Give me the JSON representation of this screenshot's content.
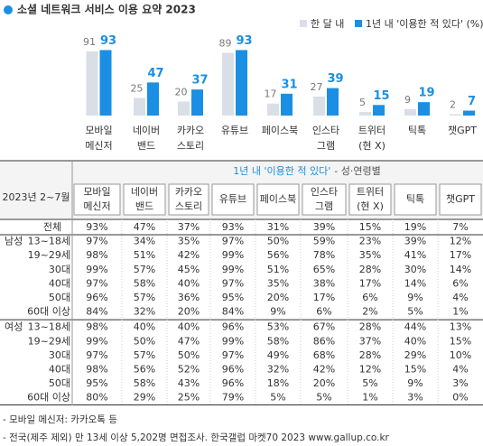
{
  "chart_data": {
    "type": "bar",
    "title": "소셜 네트워크 서비스 이용 요약 2023",
    "categories": [
      [
        "모바일",
        "메신저"
      ],
      [
        "네이버",
        "밴드"
      ],
      [
        "카카오",
        "스토리"
      ],
      [
        "유튜브"
      ],
      [
        "페이스북"
      ],
      [
        "인스타",
        "그램"
      ],
      [
        "트위터",
        "(현 X)"
      ],
      [
        "틱톡"
      ],
      [
        "챗GPT"
      ]
    ],
    "series": [
      {
        "name": "한 달 내",
        "color": "#d9dee7",
        "values": [
          91,
          25,
          20,
          89,
          17,
          27,
          5,
          9,
          2
        ]
      },
      {
        "name": "1년 내 '이용한 적 있다' (%)",
        "color": "#1a8fe3",
        "values": [
          93,
          47,
          37,
          93,
          31,
          39,
          15,
          19,
          7
        ]
      }
    ]
  },
  "table": {
    "title": "1년 내 '이용한 적 있다'",
    "subtitle": "- 성·연령별",
    "period": "2023년 2~7월",
    "total": {
      "label": "전체",
      "values": [
        "93%",
        "47%",
        "37%",
        "93%",
        "31%",
        "39%",
        "15%",
        "19%",
        "7%"
      ]
    },
    "groups": [
      {
        "name": "남성",
        "rows": [
          {
            "label": "13~18세",
            "values": [
              "97%",
              "34%",
              "35%",
              "97%",
              "50%",
              "59%",
              "23%",
              "39%",
              "12%"
            ]
          },
          {
            "label": "19~29세",
            "values": [
              "98%",
              "51%",
              "42%",
              "99%",
              "56%",
              "78%",
              "35%",
              "41%",
              "17%"
            ]
          },
          {
            "label": "30대",
            "values": [
              "99%",
              "57%",
              "45%",
              "99%",
              "51%",
              "65%",
              "28%",
              "30%",
              "14%"
            ]
          },
          {
            "label": "40대",
            "values": [
              "97%",
              "58%",
              "40%",
              "97%",
              "35%",
              "38%",
              "17%",
              "14%",
              "6%"
            ]
          },
          {
            "label": "50대",
            "values": [
              "96%",
              "57%",
              "36%",
              "95%",
              "20%",
              "17%",
              "6%",
              "9%",
              "4%"
            ]
          },
          {
            "label": "60대 이상",
            "values": [
              "84%",
              "32%",
              "20%",
              "84%",
              "9%",
              "6%",
              "2%",
              "5%",
              "1%"
            ]
          }
        ]
      },
      {
        "name": "여성",
        "rows": [
          {
            "label": "13~18세",
            "values": [
              "98%",
              "40%",
              "40%",
              "96%",
              "53%",
              "67%",
              "28%",
              "44%",
              "13%"
            ]
          },
          {
            "label": "19~29세",
            "values": [
              "99%",
              "50%",
              "47%",
              "99%",
              "58%",
              "86%",
              "37%",
              "40%",
              "15%"
            ]
          },
          {
            "label": "30대",
            "values": [
              "97%",
              "57%",
              "50%",
              "97%",
              "49%",
              "68%",
              "28%",
              "29%",
              "10%"
            ]
          },
          {
            "label": "40대",
            "values": [
              "98%",
              "56%",
              "52%",
              "96%",
              "32%",
              "42%",
              "12%",
              "15%",
              "4%"
            ]
          },
          {
            "label": "50대",
            "values": [
              "95%",
              "58%",
              "43%",
              "96%",
              "18%",
              "20%",
              "5%",
              "9%",
              "3%"
            ]
          },
          {
            "label": "60대 이상",
            "values": [
              "80%",
              "29%",
              "25%",
              "79%",
              "5%",
              "5%",
              "1%",
              "3%",
              "0%"
            ]
          }
        ]
      }
    ]
  },
  "notes": [
    "- 모바일 메신저: 카카오톡 등",
    "- 전국(제주 제외) 만 13세 이상 5,202명 면접조사. 한국갤럽 마켓70 2023 www.gallup.co.kr"
  ]
}
